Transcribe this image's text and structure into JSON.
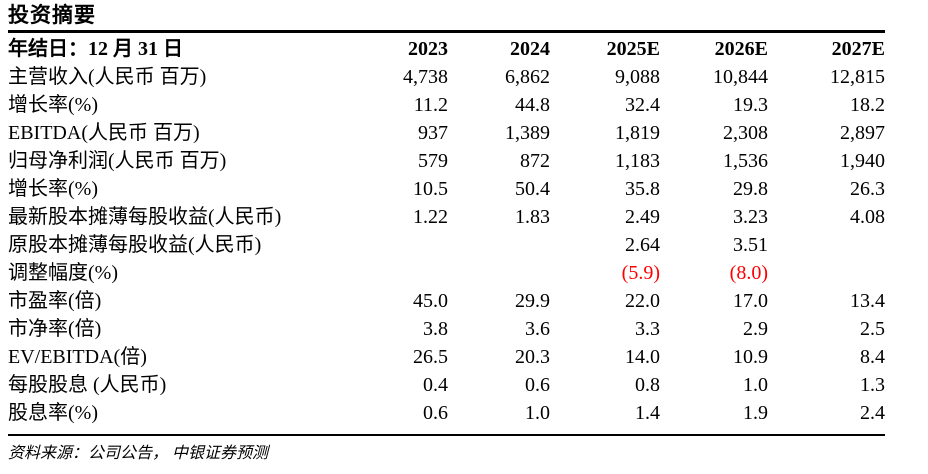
{
  "page": {
    "title": "投资摘要",
    "source_note": "资料来源：公司公告，  中银证券预测"
  },
  "colors": {
    "text": "#000000",
    "negative_value": "#FF0000",
    "rule": "#000000",
    "background": "#FFFFFF"
  },
  "table": {
    "header": {
      "label": "年结日：12 月 31 日",
      "columns": [
        "2023",
        "2024",
        "2025E",
        "2026E",
        "2027E"
      ]
    },
    "rows": [
      {
        "label": "主营收入(人民币 百万)",
        "values": [
          "4,738",
          "6,862",
          "9,088",
          "10,844",
          "12,815"
        ]
      },
      {
        "label": "增长率(%)",
        "values": [
          "11.2",
          "44.8",
          "32.4",
          "19.3",
          "18.2"
        ]
      },
      {
        "label": "EBITDA(人民币 百万)",
        "values": [
          "937",
          "1,389",
          "1,819",
          "2,308",
          "2,897"
        ]
      },
      {
        "label": "归母净利润(人民币 百万)",
        "values": [
          "579",
          "872",
          "1,183",
          "1,536",
          "1,940"
        ]
      },
      {
        "label": "增长率(%)",
        "values": [
          "10.5",
          "50.4",
          "35.8",
          "29.8",
          "26.3"
        ]
      },
      {
        "label": "最新股本摊薄每股收益(人民币)",
        "values": [
          "1.22",
          "1.83",
          "2.49",
          "3.23",
          "4.08"
        ]
      },
      {
        "label": "原股本摊薄每股收益(人民币)",
        "values": [
          "",
          "",
          "2.64",
          "3.51",
          ""
        ]
      },
      {
        "label": "调整幅度(%)",
        "values": [
          "",
          "",
          "(5.9)",
          "(8.0)",
          ""
        ]
      },
      {
        "label": "市盈率(倍)",
        "values": [
          "45.0",
          "29.9",
          "22.0",
          "17.0",
          "13.4"
        ]
      },
      {
        "label": "市净率(倍)",
        "values": [
          "3.8",
          "3.6",
          "3.3",
          "2.9",
          "2.5"
        ]
      },
      {
        "label": "EV/EBITDA(倍)",
        "values": [
          "26.5",
          "20.3",
          "14.0",
          "10.9",
          "8.4"
        ]
      },
      {
        "label": "每股股息 (人民币)",
        "values": [
          "0.4",
          "0.6",
          "0.8",
          "1.0",
          "1.3"
        ]
      },
      {
        "label": "股息率(%)",
        "values": [
          "0.6",
          "1.0",
          "1.4",
          "1.9",
          "2.4"
        ]
      }
    ]
  }
}
